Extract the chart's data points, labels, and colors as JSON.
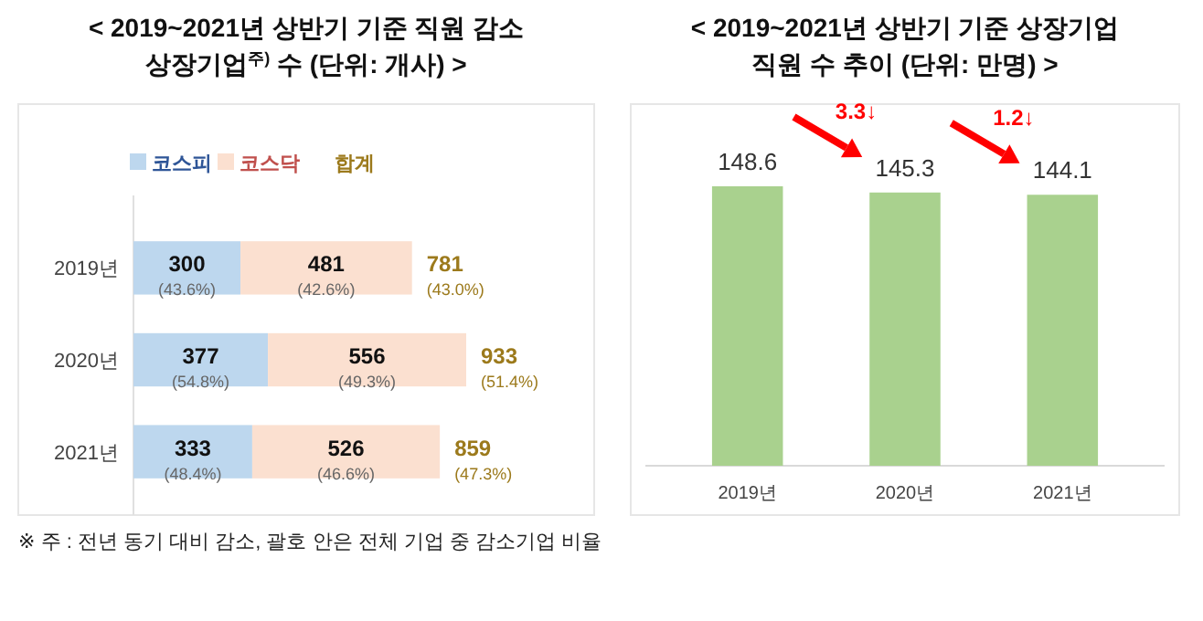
{
  "chart_data": [
    {
      "type": "bar",
      "title": "< 2019~2021년 상반기 기준 직원 감소\n상장기업$^{주)}$ 수 (단위: 개사) >",
      "orientation": "horizontal",
      "stacked": true,
      "categories": [
        "2019년",
        "2020년",
        "2021년"
      ],
      "legend": "top left",
      "series": [
        {
          "name": "코스피",
          "color": "#bdd7ee",
          "values": [
            300,
            377,
            333
          ],
          "value_labels": [
            "300 (43.6%)",
            "377 (54.8%)",
            "333 (48.4%)"
          ]
        },
        {
          "name": "코스닥",
          "color": "#fbe0d0",
          "values": [
            481,
            556,
            526
          ],
          "value_labels": [
            "481 (42.6%)",
            "556 (49.3%)",
            "526 (46.6%)"
          ]
        }
      ],
      "totals": [
        "781 (43.0%)",
        "933 (51.4%)",
        "859 (47.3%)"
      ],
      "annotations": [
        "합계",
        "※ 주 : 전년 동기 대비 감소, 괄호 안은 전체 기업 중 감소기업 비율"
      ]
    },
    {
      "type": "bar",
      "title": "< 2019~2021년 상반기 기준 상장기업\n직원 수 추이 (단위: 만명) >",
      "categories": [
        "2019년",
        "2020년",
        "2021년"
      ],
      "values": [
        148.6,
        145.3,
        144.1
      ],
      "color": "#a9d18e",
      "data_labels": true,
      "annotations": [
        "3.3↓",
        "1.2↓"
      ]
    }
  ]
}
